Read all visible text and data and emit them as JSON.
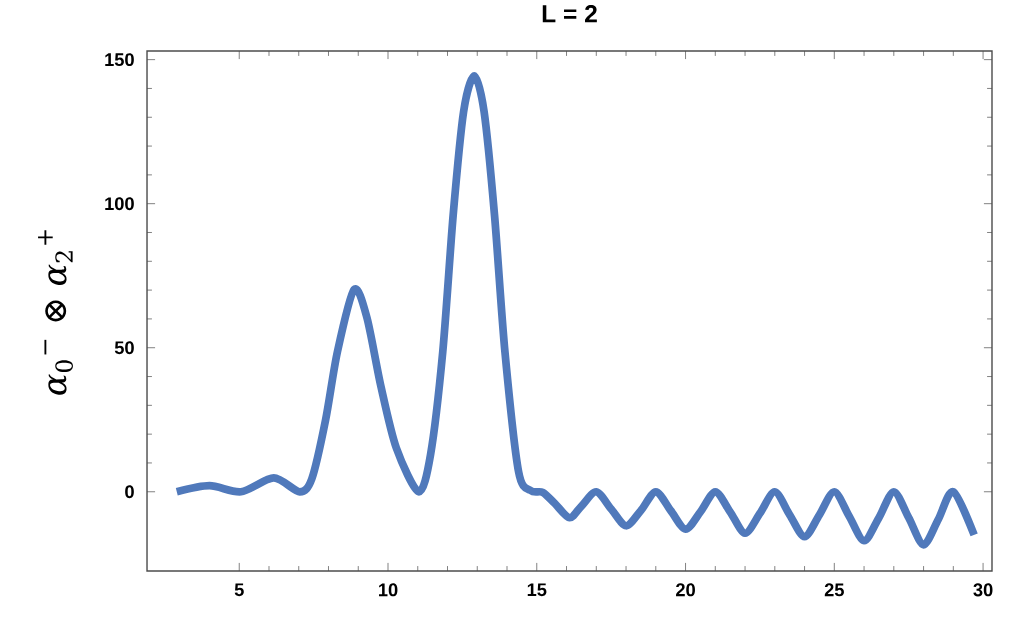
{
  "chart_data": {
    "type": "line",
    "title": "L = 2",
    "ylabel": "*α*$_{0}$$^{−}$ ⊗ *α*$_{2}$$^{+}$",
    "xlim": [
      1.9,
      30.3
    ],
    "ylim": [
      -27.5,
      153
    ],
    "xticks": [
      5,
      10,
      15,
      20,
      25,
      30
    ],
    "yticks": [
      0,
      50,
      100,
      150
    ],
    "grid": false,
    "marker": "none",
    "line_style": "solid",
    "series": [
      {
        "color": "#5079bb",
        "x": [
          2.9,
          4.0,
          5.06,
          6.16,
          7.03,
          7.44,
          7.9,
          8.3,
          8.86,
          9.29,
          9.76,
          10.28,
          11.03,
          11.43,
          11.84,
          12.19,
          12.54,
          12.9,
          13.23,
          13.58,
          13.93,
          14.39,
          14.8,
          15.2,
          15.6,
          16.1,
          16.5,
          17.0,
          17.5,
          18.0,
          18.5,
          19.0,
          19.5,
          20.0,
          20.5,
          21.0,
          21.5,
          22.0,
          22.5,
          23.0,
          23.5,
          24.0,
          24.5,
          25.0,
          25.5,
          26.0,
          26.5,
          27.0,
          27.5,
          28.0,
          28.5,
          29.0,
          29.7
        ],
        "values": [
          0,
          2.1,
          0,
          4.8,
          0,
          4.5,
          24.8,
          48.6,
          70.2,
          60.5,
          36.7,
          15.2,
          0,
          12.9,
          48.6,
          96,
          131.9,
          144.4,
          131.9,
          96,
          48.6,
          6.9,
          0.4,
          -0.2,
          -4,
          -9,
          -5,
          0,
          -6,
          -11.8,
          -6.5,
          0,
          -6.5,
          -13,
          -7,
          0,
          -7,
          -14.4,
          -7.5,
          0,
          -8,
          -15.6,
          -8,
          0,
          -8.5,
          -17,
          -9,
          0,
          -9,
          -18.4,
          -9.5,
          0,
          -15
        ]
      }
    ]
  }
}
